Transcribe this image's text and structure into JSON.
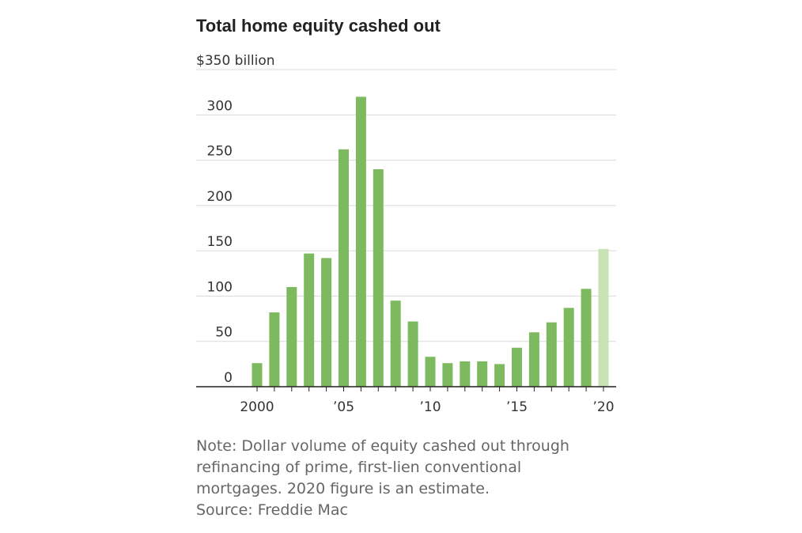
{
  "chart_data": {
    "type": "bar",
    "title": "Total home equity cashed out",
    "ylabel": "$350 billion",
    "ylim": [
      0,
      350
    ],
    "yticks": [
      {
        "value": 350,
        "label": "$350 billion"
      },
      {
        "value": 300,
        "label": "300"
      },
      {
        "value": 250,
        "label": "250"
      },
      {
        "value": 200,
        "label": "200"
      },
      {
        "value": 150,
        "label": "150"
      },
      {
        "value": 100,
        "label": "100"
      },
      {
        "value": 50,
        "label": "50"
      },
      {
        "value": 0,
        "label": "0"
      }
    ],
    "xtick_labels": [
      {
        "year": 2000,
        "label": "2000"
      },
      {
        "year": 2005,
        "label": "’05"
      },
      {
        "year": 2010,
        "label": "’10"
      },
      {
        "year": 2015,
        "label": "’15"
      },
      {
        "year": 2020,
        "label": "’20"
      }
    ],
    "categories": [
      2000,
      2001,
      2002,
      2003,
      2004,
      2005,
      2006,
      2007,
      2008,
      2009,
      2010,
      2011,
      2012,
      2013,
      2014,
      2015,
      2016,
      2017,
      2018,
      2019,
      2020
    ],
    "values": [
      26,
      82,
      110,
      147,
      142,
      262,
      320,
      240,
      95,
      72,
      33,
      26,
      28,
      28,
      25,
      43,
      60,
      71,
      87,
      108,
      152
    ],
    "estimated": [
      2020
    ],
    "colors": {
      "bar": "#7db95e",
      "estimate": "#c8e2b5",
      "grid": "#d9d9d9",
      "axis": "#222222"
    },
    "grid": true
  },
  "note": {
    "lines": [
      "Note: Dollar volume of equity cashed out through",
      "refinancing of prime, first-lien conventional",
      "mortgages. 2020 figure is an estimate."
    ],
    "source": "Source: Freddie Mac"
  }
}
